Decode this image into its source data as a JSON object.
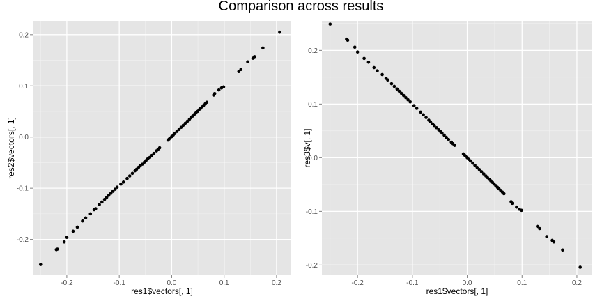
{
  "figure_title": "Comparison across results",
  "chart_data": [
    {
      "type": "scatter",
      "title": "",
      "xlabel": "res1$vectors[, 1]",
      "ylabel": "res2$vectors[, 1]",
      "xlim": [
        -0.265,
        0.228
      ],
      "ylim": [
        -0.27,
        0.227
      ],
      "xticks": [
        -0.2,
        -0.1,
        0.0,
        0.1,
        0.2
      ],
      "yticks": [
        -0.2,
        -0.1,
        0.0,
        0.1,
        0.2
      ],
      "xtick_labels": [
        "-0.2",
        "-0.1",
        "0.0",
        "0.1",
        "0.2"
      ],
      "ytick_labels": [
        "-0.2",
        "-0.1",
        "0.0",
        "0.1",
        "0.2"
      ],
      "grid": true,
      "panel_color": "#e5e5e5",
      "point_color": "#000000",
      "points": [
        [
          -0.25,
          -0.249
        ],
        [
          -0.22,
          -0.22
        ],
        [
          -0.218,
          -0.219
        ],
        [
          -0.205,
          -0.205
        ],
        [
          -0.2,
          -0.196
        ],
        [
          -0.188,
          -0.184
        ],
        [
          -0.18,
          -0.176
        ],
        [
          -0.17,
          -0.164
        ],
        [
          -0.164,
          -0.158
        ],
        [
          -0.155,
          -0.15
        ],
        [
          -0.148,
          -0.142
        ],
        [
          -0.145,
          -0.14
        ],
        [
          -0.138,
          -0.132
        ],
        [
          -0.133,
          -0.127
        ],
        [
          -0.128,
          -0.122
        ],
        [
          -0.124,
          -0.118
        ],
        [
          -0.12,
          -0.114
        ],
        [
          -0.116,
          -0.11
        ],
        [
          -0.112,
          -0.106
        ],
        [
          -0.108,
          -0.102
        ],
        [
          -0.104,
          -0.098
        ],
        [
          -0.097,
          -0.092
        ],
        [
          -0.092,
          -0.088
        ],
        [
          -0.085,
          -0.081
        ],
        [
          -0.08,
          -0.076
        ],
        [
          -0.075,
          -0.071
        ],
        [
          -0.07,
          -0.066
        ],
        [
          -0.067,
          -0.063
        ],
        [
          -0.063,
          -0.059
        ],
        [
          -0.06,
          -0.056
        ],
        [
          -0.056,
          -0.053
        ],
        [
          -0.052,
          -0.049
        ],
        [
          -0.049,
          -0.046
        ],
        [
          -0.046,
          -0.043
        ],
        [
          -0.042,
          -0.04
        ],
        [
          -0.038,
          -0.036
        ],
        [
          -0.034,
          -0.032
        ],
        [
          -0.029,
          -0.027
        ],
        [
          -0.026,
          -0.024
        ],
        [
          -0.023,
          -0.021
        ],
        [
          -0.007,
          -0.006
        ],
        [
          -0.005,
          -0.004
        ],
        [
          -0.003,
          -0.002
        ],
        [
          0.0,
          0.001
        ],
        [
          0.003,
          0.004
        ],
        [
          0.006,
          0.007
        ],
        [
          0.01,
          0.011
        ],
        [
          0.014,
          0.015
        ],
        [
          0.018,
          0.019
        ],
        [
          0.022,
          0.023
        ],
        [
          0.026,
          0.027
        ],
        [
          0.03,
          0.031
        ],
        [
          0.034,
          0.035
        ],
        [
          0.037,
          0.038
        ],
        [
          0.04,
          0.041
        ],
        [
          0.043,
          0.044
        ],
        [
          0.046,
          0.047
        ],
        [
          0.049,
          0.05
        ],
        [
          0.052,
          0.053
        ],
        [
          0.055,
          0.056
        ],
        [
          0.058,
          0.059
        ],
        [
          0.061,
          0.062
        ],
        [
          0.064,
          0.065
        ],
        [
          0.067,
          0.068
        ],
        [
          0.08,
          0.082
        ],
        [
          0.082,
          0.085
        ],
        [
          0.09,
          0.092
        ],
        [
          0.095,
          0.096
        ],
        [
          0.099,
          0.098
        ],
        [
          0.128,
          0.128
        ],
        [
          0.132,
          0.132
        ],
        [
          0.145,
          0.147
        ],
        [
          0.155,
          0.154
        ],
        [
          0.158,
          0.157
        ],
        [
          0.174,
          0.174
        ],
        [
          0.206,
          0.205
        ]
      ]
    },
    {
      "type": "scatter",
      "title": "",
      "xlabel": "res1$vectors[, 1]",
      "ylabel": "res3$v[, 1]",
      "xlim": [
        -0.265,
        0.228
      ],
      "ylim": [
        -0.219,
        0.255
      ],
      "xticks": [
        -0.2,
        -0.1,
        0.0,
        0.1,
        0.2
      ],
      "yticks": [
        -0.2,
        -0.1,
        0.0,
        0.1,
        0.2
      ],
      "xtick_labels": [
        "-0.2",
        "-0.1",
        "0.0",
        "0.1",
        "0.2"
      ],
      "ytick_labels": [
        "-0.2",
        "-0.1",
        "0.0",
        "0.1",
        "0.2"
      ],
      "grid": true,
      "panel_color": "#e5e5e5",
      "point_color": "#000000",
      "points": [
        [
          -0.25,
          0.249
        ],
        [
          -0.22,
          0.221
        ],
        [
          -0.218,
          0.219
        ],
        [
          -0.205,
          0.206
        ],
        [
          -0.2,
          0.197
        ],
        [
          -0.188,
          0.185
        ],
        [
          -0.18,
          0.178
        ],
        [
          -0.17,
          0.168
        ],
        [
          -0.164,
          0.162
        ],
        [
          -0.155,
          0.155
        ],
        [
          -0.148,
          0.148
        ],
        [
          -0.145,
          0.145
        ],
        [
          -0.138,
          0.138
        ],
        [
          -0.133,
          0.133
        ],
        [
          -0.128,
          0.128
        ],
        [
          -0.124,
          0.124
        ],
        [
          -0.12,
          0.12
        ],
        [
          -0.116,
          0.116
        ],
        [
          -0.112,
          0.112
        ],
        [
          -0.108,
          0.108
        ],
        [
          -0.104,
          0.104
        ],
        [
          -0.097,
          0.097
        ],
        [
          -0.092,
          0.092
        ],
        [
          -0.085,
          0.085
        ],
        [
          -0.08,
          0.08
        ],
        [
          -0.075,
          0.075
        ],
        [
          -0.07,
          0.07
        ],
        [
          -0.067,
          0.067
        ],
        [
          -0.063,
          0.063
        ],
        [
          -0.06,
          0.06
        ],
        [
          -0.056,
          0.056
        ],
        [
          -0.052,
          0.052
        ],
        [
          -0.049,
          0.049
        ],
        [
          -0.046,
          0.046
        ],
        [
          -0.042,
          0.042
        ],
        [
          -0.038,
          0.038
        ],
        [
          -0.034,
          0.034
        ],
        [
          -0.029,
          0.029
        ],
        [
          -0.026,
          0.026
        ],
        [
          -0.023,
          0.023
        ],
        [
          -0.007,
          0.007
        ],
        [
          -0.005,
          0.005
        ],
        [
          -0.003,
          0.003
        ],
        [
          0.0,
          0.0
        ],
        [
          0.003,
          -0.003
        ],
        [
          0.006,
          -0.006
        ],
        [
          0.01,
          -0.01
        ],
        [
          0.014,
          -0.014
        ],
        [
          0.018,
          -0.018
        ],
        [
          0.022,
          -0.022
        ],
        [
          0.026,
          -0.026
        ],
        [
          0.03,
          -0.03
        ],
        [
          0.034,
          -0.034
        ],
        [
          0.037,
          -0.037
        ],
        [
          0.04,
          -0.04
        ],
        [
          0.043,
          -0.043
        ],
        [
          0.046,
          -0.046
        ],
        [
          0.049,
          -0.049
        ],
        [
          0.052,
          -0.052
        ],
        [
          0.055,
          -0.055
        ],
        [
          0.058,
          -0.058
        ],
        [
          0.061,
          -0.061
        ],
        [
          0.064,
          -0.064
        ],
        [
          0.067,
          -0.067
        ],
        [
          0.08,
          -0.082
        ],
        [
          0.082,
          -0.085
        ],
        [
          0.09,
          -0.092
        ],
        [
          0.095,
          -0.096
        ],
        [
          0.099,
          -0.098
        ],
        [
          0.128,
          -0.128
        ],
        [
          0.132,
          -0.132
        ],
        [
          0.145,
          -0.147
        ],
        [
          0.155,
          -0.154
        ],
        [
          0.158,
          -0.157
        ],
        [
          0.174,
          -0.172
        ],
        [
          0.206,
          -0.204
        ]
      ]
    }
  ]
}
